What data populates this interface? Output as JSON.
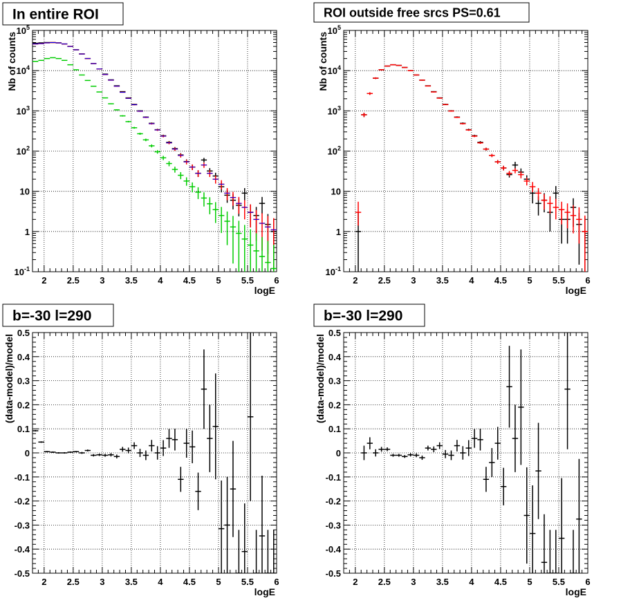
{
  "chart_data": [
    {
      "type": "scatter",
      "title": "In entire ROI",
      "xlabel": "logE",
      "ylabel": "Nb of counts",
      "xlim": [
        1.8,
        6.0
      ],
      "ylim": [
        0.1,
        100000
      ],
      "yscale": "log",
      "grid": true,
      "x_ticks": [
        "2",
        "2.5",
        "3",
        "3.5",
        "4",
        "4.5",
        "5",
        "5.5",
        "6"
      ],
      "y_ticks": [
        "10^-1",
        "1",
        "10",
        "10^2",
        "10^3",
        "10^4",
        "10^5"
      ],
      "series": [
        {
          "color": "#000000",
          "style": "errorbar",
          "x": [
            1.85,
            1.95,
            2.05,
            2.15,
            2.25,
            2.35,
            2.45,
            2.55,
            2.65,
            2.75,
            2.85,
            2.95,
            3.05,
            3.15,
            3.25,
            3.35,
            3.45,
            3.55,
            3.65,
            3.75,
            3.85,
            3.95,
            4.05,
            4.15,
            4.25,
            4.35,
            4.45,
            4.55,
            4.65,
            4.75,
            4.85,
            4.95,
            5.05,
            5.15,
            5.25,
            5.35,
            5.45,
            5.55,
            5.65,
            5.75,
            5.85,
            5.95
          ],
          "values": [
            48000,
            49000,
            50000,
            50000,
            49000,
            46000,
            40000,
            33000,
            26000,
            20000,
            15000,
            11000,
            8200,
            5900,
            4200,
            3000,
            2100,
            1450,
            1000,
            700,
            490,
            340,
            240,
            165,
            115,
            80,
            55,
            40,
            28,
            60,
            32,
            24,
            13,
            8,
            6,
            4.5,
            9,
            3,
            2.5,
            5,
            1.5,
            1
          ]
        },
        {
          "color": "#ff0000",
          "style": "errorbar",
          "x": [
            1.85,
            1.95,
            2.05,
            2.15,
            2.25,
            2.35,
            2.45,
            2.55,
            2.65,
            2.75,
            2.85,
            2.95,
            3.05,
            3.15,
            3.25,
            3.35,
            3.45,
            3.55,
            3.65,
            3.75,
            3.85,
            3.95,
            4.05,
            4.15,
            4.25,
            4.35,
            4.45,
            4.55,
            4.65,
            4.75,
            4.85,
            4.95,
            5.05,
            5.15,
            5.25,
            5.35,
            5.45,
            5.55,
            5.65,
            5.75,
            5.85,
            5.95
          ],
          "values": [
            46000,
            47000,
            49000,
            50000,
            49000,
            46000,
            40000,
            33000,
            26000,
            20000,
            15000,
            11000,
            8000,
            5800,
            4100,
            2900,
            2050,
            1420,
            980,
            690,
            480,
            335,
            235,
            160,
            112,
            78,
            54,
            40,
            28,
            45,
            28,
            20,
            15,
            9,
            7,
            5,
            4,
            3,
            2,
            1.6,
            1.3,
            1.1
          ]
        },
        {
          "color": "#0000ff",
          "style": "step",
          "x": [
            1.85,
            1.95,
            2.05,
            2.15,
            2.25,
            2.35,
            2.45,
            2.55,
            2.65,
            2.75,
            2.85,
            2.95,
            3.05,
            3.15,
            3.25,
            3.35,
            3.45,
            3.55,
            3.65,
            3.75,
            3.85,
            3.95,
            4.05,
            4.15,
            4.25,
            4.35,
            4.45,
            4.55,
            4.65,
            4.75,
            4.85,
            4.95,
            5.05,
            5.15,
            5.25,
            5.35,
            5.45,
            5.55,
            5.65,
            5.75,
            5.85,
            5.95
          ],
          "values": [
            46000,
            47000,
            49000,
            50000,
            49000,
            46000,
            40000,
            33000,
            26000,
            20000,
            15000,
            11000,
            8000,
            5800,
            4100,
            2900,
            2050,
            1420,
            980,
            690,
            480,
            335,
            235,
            160,
            112,
            78,
            54,
            40,
            28,
            45,
            28,
            20,
            15,
            9,
            7,
            5,
            4,
            3,
            2,
            1.6,
            1.3,
            1.1
          ]
        },
        {
          "color": "#00cc00",
          "style": "errorbar",
          "x": [
            1.85,
            1.95,
            2.05,
            2.15,
            2.25,
            2.35,
            2.45,
            2.55,
            2.65,
            2.75,
            2.85,
            2.95,
            3.05,
            3.15,
            3.25,
            3.35,
            3.45,
            3.55,
            3.65,
            3.75,
            3.85,
            3.95,
            4.05,
            4.15,
            4.25,
            4.35,
            4.45,
            4.55,
            4.65,
            4.75,
            4.85,
            4.95,
            5.05,
            5.15,
            5.25,
            5.35,
            5.45,
            5.55,
            5.65,
            5.75,
            5.85,
            5.95
          ],
          "values": [
            17000,
            18000,
            20000,
            21000,
            20000,
            18000,
            14000,
            10500,
            7800,
            5700,
            4100,
            2950,
            2100,
            1500,
            1060,
            750,
            540,
            380,
            270,
            190,
            135,
            96,
            68,
            49,
            35,
            25,
            18,
            13,
            9.5,
            6.8,
            4.9,
            3.5,
            2.5,
            1.8,
            1.3,
            0.9,
            0.65,
            0.46,
            0.33,
            0.24,
            0.17,
            0.12
          ]
        }
      ]
    },
    {
      "type": "scatter",
      "title": "ROI outside free srcs PS=0.61",
      "xlabel": "logE",
      "ylabel": "Nb of counts",
      "xlim": [
        1.8,
        6.0
      ],
      "ylim": [
        0.1,
        100000
      ],
      "yscale": "log",
      "grid": true,
      "x_ticks": [
        "2",
        "2.5",
        "3",
        "3.5",
        "4",
        "4.5",
        "5",
        "5.5",
        "6"
      ],
      "y_ticks": [
        "10^-1",
        "1",
        "10",
        "10^2",
        "10^3",
        "10^4",
        "10^5"
      ],
      "series": [
        {
          "color": "#000000",
          "style": "errorbar",
          "x": [
            2.05,
            2.15,
            2.25,
            2.35,
            2.45,
            2.55,
            2.65,
            2.75,
            2.85,
            2.95,
            3.05,
            3.15,
            3.25,
            3.35,
            3.45,
            3.55,
            3.65,
            3.75,
            3.85,
            3.95,
            4.05,
            4.15,
            4.25,
            4.35,
            4.45,
            4.55,
            4.65,
            4.75,
            4.85,
            4.95,
            5.05,
            5.15,
            5.25,
            5.35,
            5.45,
            5.55,
            5.65,
            5.75,
            5.85,
            5.95
          ],
          "values": [
            1,
            800,
            2700,
            6500,
            10500,
            13000,
            14000,
            13500,
            12000,
            10000,
            7800,
            5800,
            4200,
            3000,
            2100,
            1450,
            1000,
            700,
            490,
            340,
            240,
            165,
            112,
            78,
            54,
            38,
            26,
            45,
            30,
            20,
            9,
            5,
            6,
            3,
            9,
            2,
            2,
            4,
            1.5,
            1
          ],
          "ylow": [
            0.02,
            700,
            2500,
            6200,
            10100,
            12700,
            13700,
            13200,
            11700,
            9700,
            7600,
            5650,
            4100,
            2920,
            2040,
            1400,
            960,
            670,
            465,
            320,
            225,
            153,
            103,
            71,
            48,
            33,
            22,
            36,
            23,
            15,
            5,
            2.5,
            3,
            1,
            4.5,
            0.5,
            0.5,
            1.3,
            0.15,
            0.02
          ],
          "yhigh": [
            3,
            900,
            2900,
            6800,
            10900,
            13300,
            14300,
            13800,
            12300,
            10300,
            8000,
            5950,
            4300,
            3080,
            2160,
            1500,
            1040,
            730,
            515,
            360,
            255,
            177,
            121,
            85,
            60,
            43,
            30,
            54,
            37,
            25,
            13,
            7.5,
            9,
            5,
            13.5,
            3.5,
            3.5,
            6.7,
            2.9,
            2.3
          ]
        },
        {
          "color": "#ff0000",
          "style": "errorbar",
          "x": [
            2.05,
            2.15,
            2.25,
            2.35,
            2.45,
            2.55,
            2.65,
            2.75,
            2.85,
            2.95,
            3.05,
            3.15,
            3.25,
            3.35,
            3.45,
            3.55,
            3.65,
            3.75,
            3.85,
            3.95,
            4.05,
            4.15,
            4.25,
            4.35,
            4.45,
            4.55,
            4.65,
            4.75,
            4.85,
            4.95,
            5.05,
            5.15,
            5.25,
            5.35,
            5.45,
            5.55,
            5.65,
            5.75,
            5.85,
            5.95
          ],
          "values": [
            3,
            800,
            2700,
            6500,
            10500,
            13000,
            14000,
            13500,
            12000,
            10000,
            7800,
            5800,
            4150,
            2950,
            2070,
            1430,
            990,
            690,
            480,
            335,
            235,
            160,
            112,
            78,
            54,
            38,
            28,
            33,
            26,
            18,
            13,
            9,
            6,
            5,
            4,
            3.5,
            3,
            2.5,
            2,
            1
          ],
          "ylow": [
            1.4,
            700,
            2500,
            6200,
            10100,
            12700,
            13700,
            13200,
            11700,
            9700,
            7600,
            5650,
            4050,
            2870,
            2010,
            1390,
            955,
            665,
            460,
            320,
            222,
            151,
            104,
            71,
            48,
            33,
            24,
            28,
            21,
            14,
            9.5,
            6,
            3.5,
            2.8,
            2,
            1.5,
            1.2,
            0.9,
            0.5,
            0.1
          ],
          "yhigh": [
            5.5,
            900,
            2900,
            6800,
            10900,
            13300,
            14300,
            13800,
            12300,
            10300,
            8000,
            5950,
            4250,
            3030,
            2130,
            1470,
            1025,
            715,
            500,
            350,
            248,
            169,
            120,
            85,
            60,
            43,
            32,
            38,
            31,
            22,
            17,
            12,
            8.5,
            7.5,
            6.5,
            5.5,
            5,
            4.5,
            4,
            2.5
          ]
        }
      ]
    },
    {
      "type": "scatter",
      "title": "b=-30 l=290",
      "xlabel": "logE",
      "ylabel": "(data-model)/model",
      "xlim": [
        1.8,
        6.0
      ],
      "ylim": [
        -0.5,
        0.5
      ],
      "grid": true,
      "x_ticks": [
        "2",
        "2.5",
        "3",
        "3.5",
        "4",
        "4.5",
        "5",
        "5.5",
        "6"
      ],
      "y_ticks": [
        "-0.5",
        "-0.4",
        "-0.3",
        "-0.2",
        "-0.1",
        "0",
        "0.1",
        "0.2",
        "0.3",
        "0.4",
        "0.5"
      ],
      "series": [
        {
          "color": "#000000",
          "style": "errorbar",
          "x": [
            1.85,
            1.95,
            2.05,
            2.15,
            2.25,
            2.35,
            2.45,
            2.55,
            2.65,
            2.75,
            2.85,
            2.95,
            3.05,
            3.15,
            3.25,
            3.35,
            3.45,
            3.55,
            3.65,
            3.75,
            3.85,
            3.95,
            4.05,
            4.15,
            4.25,
            4.35,
            4.45,
            4.55,
            4.65,
            4.75,
            4.85,
            4.95,
            5.05,
            5.15,
            5.25,
            5.35,
            5.45,
            5.55,
            5.65,
            5.75,
            5.85,
            5.95
          ],
          "values": [
            0.092,
            0.045,
            0.005,
            0.003,
            0.0,
            0.0,
            0.003,
            0.005,
            0.0,
            0.01,
            -0.01,
            -0.008,
            -0.01,
            -0.008,
            -0.015,
            0.015,
            0.01,
            0.03,
            0.0,
            -0.01,
            0.03,
            0.0,
            0.02,
            0.06,
            0.055,
            -0.11,
            0.04,
            0.025,
            -0.16,
            0.265,
            0.06,
            0.11,
            -0.315,
            -0.3,
            -0.15,
            -0.52,
            -0.41,
            0.15,
            -0.52,
            -0.345,
            -0.52,
            -0.52
          ],
          "err": [
            0.003,
            0.003,
            0.003,
            0.003,
            0.003,
            0.003,
            0.003,
            0.003,
            0.004,
            0.004,
            0.005,
            0.005,
            0.006,
            0.007,
            0.008,
            0.01,
            0.012,
            0.014,
            0.017,
            0.02,
            0.024,
            0.028,
            0.033,
            0.039,
            0.045,
            0.052,
            0.06,
            0.068,
            0.078,
            0.165,
            0.14,
            0.22,
            0.2,
            0.2,
            0.2,
            0.2,
            0.2,
            0.35,
            0.2,
            0.25,
            0.2,
            0.2
          ]
        }
      ]
    },
    {
      "type": "scatter",
      "title": "b=-30 l=290",
      "xlabel": "logE",
      "ylabel": "(data-model)/model",
      "xlim": [
        1.8,
        6.0
      ],
      "ylim": [
        -0.5,
        0.5
      ],
      "grid": true,
      "x_ticks": [
        "2",
        "2.5",
        "3",
        "3.5",
        "4",
        "4.5",
        "5",
        "5.5",
        "6"
      ],
      "y_ticks": [
        "-0.5",
        "-0.4",
        "-0.3",
        "-0.2",
        "-0.1",
        "0",
        "0.1",
        "0.2",
        "0.3",
        "0.4",
        "0.5"
      ],
      "series": [
        {
          "color": "#000000",
          "style": "errorbar",
          "x": [
            2.15,
            2.25,
            2.35,
            2.45,
            2.55,
            2.65,
            2.75,
            2.85,
            2.95,
            3.05,
            3.15,
            3.25,
            3.35,
            3.45,
            3.55,
            3.65,
            3.75,
            3.85,
            3.95,
            4.05,
            4.15,
            4.25,
            4.35,
            4.45,
            4.55,
            4.65,
            4.75,
            4.85,
            4.95,
            5.05,
            5.15,
            5.25,
            5.35,
            5.45,
            5.55,
            5.65,
            5.75,
            5.85
          ],
          "values": [
            0.0,
            0.04,
            0.0,
            0.015,
            0.015,
            -0.01,
            -0.01,
            -0.015,
            -0.008,
            -0.01,
            -0.02,
            0.02,
            0.015,
            0.03,
            -0.005,
            -0.01,
            0.03,
            0.0,
            0.02,
            0.06,
            0.055,
            -0.11,
            -0.04,
            0.04,
            -0.14,
            0.275,
            0.06,
            0.19,
            -0.26,
            -0.335,
            -0.075,
            -0.455,
            -0.52,
            -0.52,
            -0.355,
            0.265,
            -0.52,
            -0.275
          ],
          "err": [
            0.03,
            0.025,
            0.015,
            0.01,
            0.008,
            0.006,
            0.006,
            0.006,
            0.007,
            0.008,
            0.009,
            0.01,
            0.012,
            0.014,
            0.017,
            0.02,
            0.024,
            0.028,
            0.033,
            0.039,
            0.045,
            0.052,
            0.06,
            0.068,
            0.078,
            0.17,
            0.14,
            0.24,
            0.2,
            0.2,
            0.2,
            0.2,
            0.2,
            0.2,
            0.25,
            0.25,
            0.2,
            0.25
          ]
        }
      ]
    }
  ]
}
